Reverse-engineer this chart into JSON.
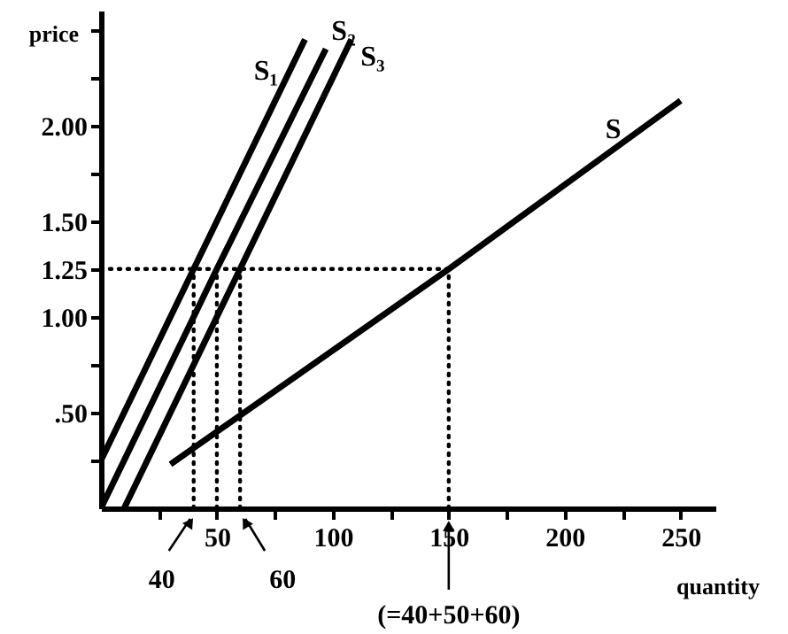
{
  "chart_data": {
    "type": "line",
    "xlabel": "quantity",
    "ylabel": "price",
    "xlim": [
      0,
      265
    ],
    "ylim": [
      0,
      2.6
    ],
    "xticks": [
      {
        "value": 25,
        "label": null
      },
      50,
      {
        "value": 75,
        "label": null
      },
      100,
      {
        "value": 125,
        "label": null
      },
      150,
      {
        "value": 175,
        "label": null
      },
      200,
      {
        "value": 225,
        "label": null
      },
      250
    ],
    "yticks": [
      {
        "value": 0.25,
        "label": null
      },
      {
        "value": 0.5,
        "label": ".50"
      },
      {
        "value": 0.75,
        "label": null
      },
      {
        "value": 1,
        "label": "1.00"
      },
      {
        "value": 1.25,
        "label": "1.25"
      },
      {
        "value": 1.5,
        "label": "1.50"
      },
      {
        "value": 1.75,
        "label": null
      },
      {
        "value": 2,
        "label": "2.00"
      },
      {
        "value": 2.25,
        "label": null
      },
      {
        "value": 2.5,
        "label": null
      }
    ],
    "grid": false,
    "line_style": "solid",
    "series": [
      {
        "name": "S₁",
        "color": "#000000",
        "x": [
          0,
          40,
          88
        ],
        "values": [
          0.25,
          1.25,
          2.45
        ]
      },
      {
        "name": "S₂",
        "color": "#000000",
        "x": [
          0,
          50,
          97
        ],
        "values": [
          0,
          1.25,
          2.4
        ]
      },
      {
        "name": "S₃",
        "color": "#000000",
        "x": [
          10,
          60,
          108
        ],
        "values": [
          0,
          1.25,
          2.45
        ]
      },
      {
        "name": "S",
        "color": "#000000",
        "x": [
          30,
          150,
          250
        ],
        "values": [
          0.23,
          1.25,
          2.13
        ]
      },
      {
        "color": "#000000",
        "line_style": "dotted",
        "x": [
          0,
          150
        ],
        "values": [
          1.25,
          1.25
        ]
      },
      {
        "color": "#000000",
        "line_style": "dotted",
        "x": [
          40,
          40
        ],
        "values": [
          0,
          1.25
        ]
      },
      {
        "color": "#000000",
        "line_style": "dotted",
        "x": [
          50,
          50
        ],
        "values": [
          0,
          1.25
        ]
      },
      {
        "color": "#000000",
        "line_style": "dotted",
        "x": [
          60,
          60
        ],
        "values": [
          0,
          1.25
        ]
      },
      {
        "color": "#000000",
        "line_style": "dotted",
        "x": [
          150,
          150
        ],
        "values": [
          0,
          1.25
        ]
      }
    ],
    "annotations": [
      {
        "text": "40",
        "x": 40,
        "y": 0
      },
      {
        "text": "60",
        "x": 60,
        "y": 0
      },
      {
        "text": "(=40+50+60)",
        "x": 150,
        "y": 0
      }
    ]
  }
}
